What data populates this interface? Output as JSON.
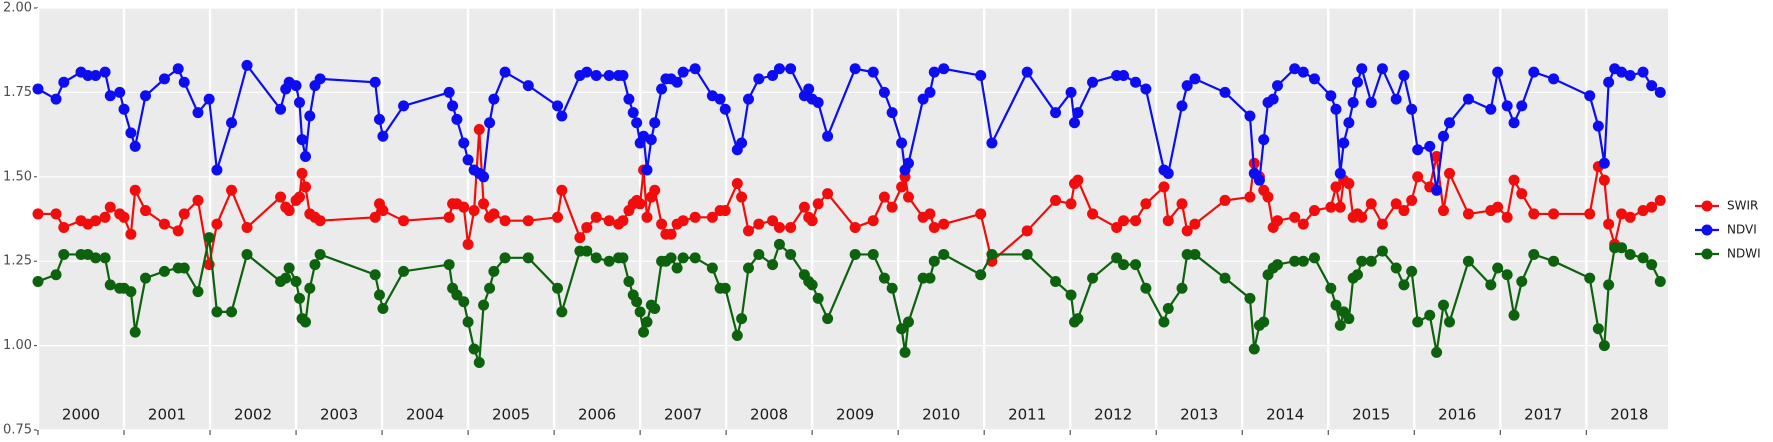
{
  "chart_data": {
    "type": "line",
    "x": [
      2000.0,
      2000.21,
      2000.3,
      2000.5,
      2000.58,
      2000.67,
      2000.78,
      2000.84,
      2000.95,
      2001.0,
      2001.08,
      2001.13,
      2001.25,
      2001.47,
      2001.63,
      2001.7,
      2001.86,
      2001.99,
      2002.08,
      2002.25,
      2002.43,
      2002.82,
      2002.88,
      2002.92,
      2003.0,
      2003.04,
      2003.07,
      2003.11,
      2003.16,
      2003.22,
      2003.28,
      2003.92,
      2003.97,
      2004.01,
      2004.25,
      2004.78,
      2004.82,
      2004.87,
      2004.95,
      2005.0,
      2005.07,
      2005.13,
      2005.18,
      2005.25,
      2005.3,
      2005.43,
      2005.7,
      2006.04,
      2006.09,
      2006.3,
      2006.38,
      2006.49,
      2006.64,
      2006.75,
      2006.8,
      2006.87,
      2006.92,
      2006.96,
      2007.0,
      2007.04,
      2007.08,
      2007.13,
      2007.17,
      2007.25,
      2007.3,
      2007.36,
      2007.43,
      2007.5,
      2007.64,
      2007.84,
      2007.93,
      2007.99,
      2008.13,
      2008.18,
      2008.26,
      2008.38,
      2008.54,
      2008.62,
      2008.75,
      2008.91,
      2008.96,
      2009.0,
      2009.07,
      2009.18,
      2009.5,
      2009.71,
      2009.84,
      2009.93,
      2010.04,
      2010.08,
      2010.12,
      2010.29,
      2010.37,
      2010.42,
      2010.53,
      2010.96,
      2011.09,
      2011.5,
      2011.83,
      2012.01,
      2012.05,
      2012.09,
      2012.26,
      2012.54,
      2012.62,
      2012.76,
      2012.88,
      2013.09,
      2013.14,
      2013.3,
      2013.36,
      2013.45,
      2013.8,
      2014.09,
      2014.14,
      2014.2,
      2014.25,
      2014.3,
      2014.36,
      2014.41,
      2014.61,
      2014.71,
      2014.84,
      2015.03,
      2015.09,
      2015.14,
      2015.18,
      2015.24,
      2015.29,
      2015.34,
      2015.39,
      2015.5,
      2015.63,
      2015.79,
      2015.88,
      2015.97,
      2016.04,
      2016.18,
      2016.26,
      2016.34,
      2016.41,
      2016.63,
      2016.89,
      2016.97,
      2017.08,
      2017.16,
      2017.25,
      2017.39,
      2017.62,
      2018.04,
      2018.14,
      2018.21,
      2018.26,
      2018.33,
      2018.41,
      2018.51,
      2018.66,
      2018.76,
      2018.86
    ],
    "series": [
      {
        "name": "SWIR",
        "color": "#f20d0d",
        "values": [
          1.39,
          1.39,
          1.35,
          1.37,
          1.36,
          1.37,
          1.38,
          1.41,
          1.39,
          1.38,
          1.33,
          1.46,
          1.4,
          1.36,
          1.34,
          1.39,
          1.43,
          1.24,
          1.36,
          1.46,
          1.35,
          1.44,
          1.41,
          1.4,
          1.43,
          1.44,
          1.51,
          1.47,
          1.39,
          1.38,
          1.37,
          1.38,
          1.42,
          1.4,
          1.37,
          1.38,
          1.42,
          1.42,
          1.41,
          1.3,
          1.4,
          1.64,
          1.42,
          1.38,
          1.39,
          1.37,
          1.37,
          1.38,
          1.46,
          1.32,
          1.35,
          1.38,
          1.37,
          1.36,
          1.37,
          1.4,
          1.42,
          1.43,
          1.42,
          1.52,
          1.38,
          1.44,
          1.46,
          1.36,
          1.33,
          1.33,
          1.36,
          1.37,
          1.38,
          1.38,
          1.4,
          1.4,
          1.48,
          1.44,
          1.34,
          1.36,
          1.37,
          1.35,
          1.35,
          1.41,
          1.38,
          1.37,
          1.42,
          1.45,
          1.35,
          1.37,
          1.44,
          1.41,
          1.47,
          1.5,
          1.44,
          1.38,
          1.39,
          1.35,
          1.36,
          1.39,
          1.25,
          1.34,
          1.43,
          1.42,
          1.48,
          1.49,
          1.39,
          1.35,
          1.37,
          1.37,
          1.42,
          1.47,
          1.37,
          1.42,
          1.34,
          1.36,
          1.43,
          1.44,
          1.54,
          1.5,
          1.46,
          1.44,
          1.35,
          1.37,
          1.38,
          1.36,
          1.4,
          1.41,
          1.47,
          1.41,
          1.49,
          1.48,
          1.38,
          1.39,
          1.38,
          1.42,
          1.36,
          1.42,
          1.4,
          1.43,
          1.5,
          1.47,
          1.56,
          1.4,
          1.51,
          1.39,
          1.4,
          1.41,
          1.38,
          1.49,
          1.45,
          1.39,
          1.39,
          1.39,
          1.53,
          1.49,
          1.36,
          1.3,
          1.39,
          1.38,
          1.4,
          1.41,
          1.43
        ]
      },
      {
        "name": "NDVI",
        "color": "#0d0df2",
        "values": [
          1.76,
          1.73,
          1.78,
          1.81,
          1.8,
          1.8,
          1.81,
          1.74,
          1.75,
          1.7,
          1.63,
          1.59,
          1.74,
          1.79,
          1.82,
          1.78,
          1.69,
          1.73,
          1.52,
          1.66,
          1.83,
          1.7,
          1.76,
          1.78,
          1.77,
          1.72,
          1.61,
          1.56,
          1.68,
          1.77,
          1.79,
          1.78,
          1.67,
          1.62,
          1.71,
          1.75,
          1.71,
          1.67,
          1.6,
          1.55,
          1.52,
          1.51,
          1.5,
          1.66,
          1.73,
          1.81,
          1.77,
          1.71,
          1.68,
          1.8,
          1.81,
          1.8,
          1.8,
          1.8,
          1.8,
          1.73,
          1.69,
          1.66,
          1.6,
          1.62,
          1.52,
          1.61,
          1.66,
          1.76,
          1.79,
          1.79,
          1.78,
          1.81,
          1.82,
          1.74,
          1.73,
          1.7,
          1.58,
          1.6,
          1.73,
          1.79,
          1.8,
          1.82,
          1.82,
          1.74,
          1.76,
          1.73,
          1.72,
          1.62,
          1.82,
          1.81,
          1.75,
          1.69,
          1.6,
          1.52,
          1.54,
          1.73,
          1.75,
          1.81,
          1.82,
          1.8,
          1.6,
          1.81,
          1.69,
          1.75,
          1.66,
          1.69,
          1.78,
          1.8,
          1.8,
          1.78,
          1.76,
          1.52,
          1.51,
          1.71,
          1.77,
          1.79,
          1.75,
          1.68,
          1.51,
          1.49,
          1.61,
          1.72,
          1.73,
          1.77,
          1.82,
          1.81,
          1.79,
          1.74,
          1.7,
          1.51,
          1.6,
          1.66,
          1.72,
          1.78,
          1.82,
          1.72,
          1.82,
          1.73,
          1.8,
          1.7,
          1.58,
          1.59,
          1.46,
          1.62,
          1.66,
          1.73,
          1.7,
          1.81,
          1.71,
          1.66,
          1.71,
          1.81,
          1.79,
          1.74,
          1.65,
          1.54,
          1.78,
          1.82,
          1.81,
          1.8,
          1.81,
          1.77,
          1.75
        ]
      },
      {
        "name": "NDWI",
        "color": "#0d630d",
        "values": [
          1.19,
          1.21,
          1.27,
          1.27,
          1.27,
          1.26,
          1.26,
          1.18,
          1.17,
          1.17,
          1.16,
          1.04,
          1.2,
          1.22,
          1.23,
          1.23,
          1.16,
          1.32,
          1.1,
          1.1,
          1.27,
          1.19,
          1.2,
          1.23,
          1.19,
          1.14,
          1.08,
          1.07,
          1.17,
          1.24,
          1.27,
          1.21,
          1.15,
          1.11,
          1.22,
          1.24,
          1.17,
          1.15,
          1.13,
          1.07,
          0.99,
          0.95,
          1.12,
          1.17,
          1.22,
          1.26,
          1.26,
          1.17,
          1.1,
          1.28,
          1.28,
          1.26,
          1.25,
          1.26,
          1.26,
          1.19,
          1.15,
          1.13,
          1.1,
          1.04,
          1.07,
          1.12,
          1.11,
          1.25,
          1.25,
          1.26,
          1.23,
          1.26,
          1.26,
          1.23,
          1.17,
          1.17,
          1.03,
          1.08,
          1.23,
          1.27,
          1.24,
          1.3,
          1.27,
          1.21,
          1.19,
          1.18,
          1.14,
          1.08,
          1.27,
          1.27,
          1.2,
          1.17,
          1.05,
          0.98,
          1.07,
          1.2,
          1.2,
          1.25,
          1.27,
          1.21,
          1.27,
          1.27,
          1.19,
          1.15,
          1.07,
          1.08,
          1.2,
          1.26,
          1.24,
          1.24,
          1.17,
          1.07,
          1.11,
          1.17,
          1.27,
          1.27,
          1.2,
          1.14,
          0.99,
          1.06,
          1.07,
          1.21,
          1.23,
          1.24,
          1.25,
          1.25,
          1.26,
          1.17,
          1.12,
          1.06,
          1.1,
          1.08,
          1.2,
          1.21,
          1.25,
          1.25,
          1.28,
          1.23,
          1.18,
          1.22,
          1.07,
          1.09,
          0.98,
          1.12,
          1.07,
          1.25,
          1.18,
          1.23,
          1.21,
          1.09,
          1.19,
          1.27,
          1.25,
          1.2,
          1.05,
          1.0,
          1.18,
          1.29,
          1.29,
          1.27,
          1.26,
          1.24,
          1.19
        ]
      }
    ],
    "xlim": [
      2000,
      2018.95
    ],
    "xticks": [
      {
        "value": 2000,
        "label": "2000"
      },
      {
        "value": 2001,
        "label": "2001"
      },
      {
        "value": 2002,
        "label": "2002"
      },
      {
        "value": 2003,
        "label": "2003"
      },
      {
        "value": 2004,
        "label": "2004"
      },
      {
        "value": 2005,
        "label": "2005"
      },
      {
        "value": 2006,
        "label": "2006"
      },
      {
        "value": 2007,
        "label": "2007"
      },
      {
        "value": 2008,
        "label": "2008"
      },
      {
        "value": 2009,
        "label": "2009"
      },
      {
        "value": 2010,
        "label": "2010"
      },
      {
        "value": 2011,
        "label": "2011"
      },
      {
        "value": 2012,
        "label": "2012"
      },
      {
        "value": 2013,
        "label": "2013"
      },
      {
        "value": 2014,
        "label": "2014"
      },
      {
        "value": 2015,
        "label": "2015"
      },
      {
        "value": 2016,
        "label": "2016"
      },
      {
        "value": 2017,
        "label": "2017"
      },
      {
        "value": 2018,
        "label": "2018"
      }
    ],
    "ylim": [
      0.75,
      2.0
    ],
    "yticks": [
      {
        "value": 0.75,
        "label": "0.75"
      },
      {
        "value": 1.0,
        "label": "1.00"
      },
      {
        "value": 1.25,
        "label": "1.25"
      },
      {
        "value": 1.5,
        "label": "1.50"
      },
      {
        "value": 1.75,
        "label": "1.75"
      },
      {
        "value": 2.0,
        "label": "2.00"
      }
    ],
    "grid": true,
    "legend": "right"
  }
}
